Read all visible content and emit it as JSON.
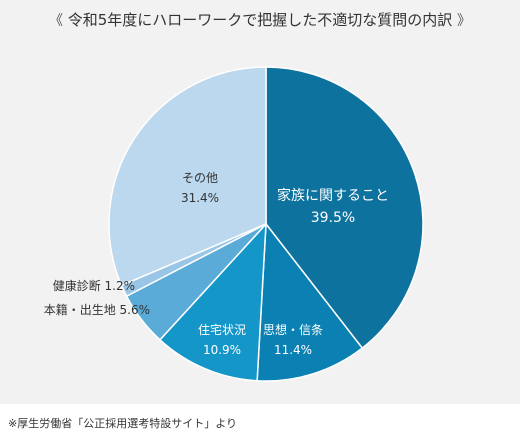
{
  "title": "令和5年度にハローワークで把握した不適切な質問の内訳",
  "title_bracket_left": "《",
  "title_bracket_right": "》",
  "source": "※厚生労働省「公正採用選考特設サイト」より",
  "chart_data": {
    "type": "pie",
    "title": "令和5年度にハローワークで把握した不適切な質問の内訳",
    "unit": "%",
    "slices": [
      {
        "label": "家族に関すること",
        "value": 39.5,
        "color": "#0d729e",
        "label_color": "#ffffff"
      },
      {
        "label": "思想・信条",
        "value": 11.4,
        "color": "#0b80b3",
        "label_color": "#ffffff"
      },
      {
        "label": "住宅状況",
        "value": 10.9,
        "color": "#1496c9",
        "label_color": "#ffffff"
      },
      {
        "label": "本籍・出生地",
        "value": 5.6,
        "color": "#5aabd8",
        "label_color": "#333333"
      },
      {
        "label": "健康診断",
        "value": 1.2,
        "color": "#99c6e6",
        "label_color": "#333333"
      },
      {
        "label": "その他",
        "value": 31.4,
        "color": "#bcd8ee",
        "label_color": "#333333"
      }
    ],
    "start": "12 o'clock",
    "direction": "clockwise"
  }
}
